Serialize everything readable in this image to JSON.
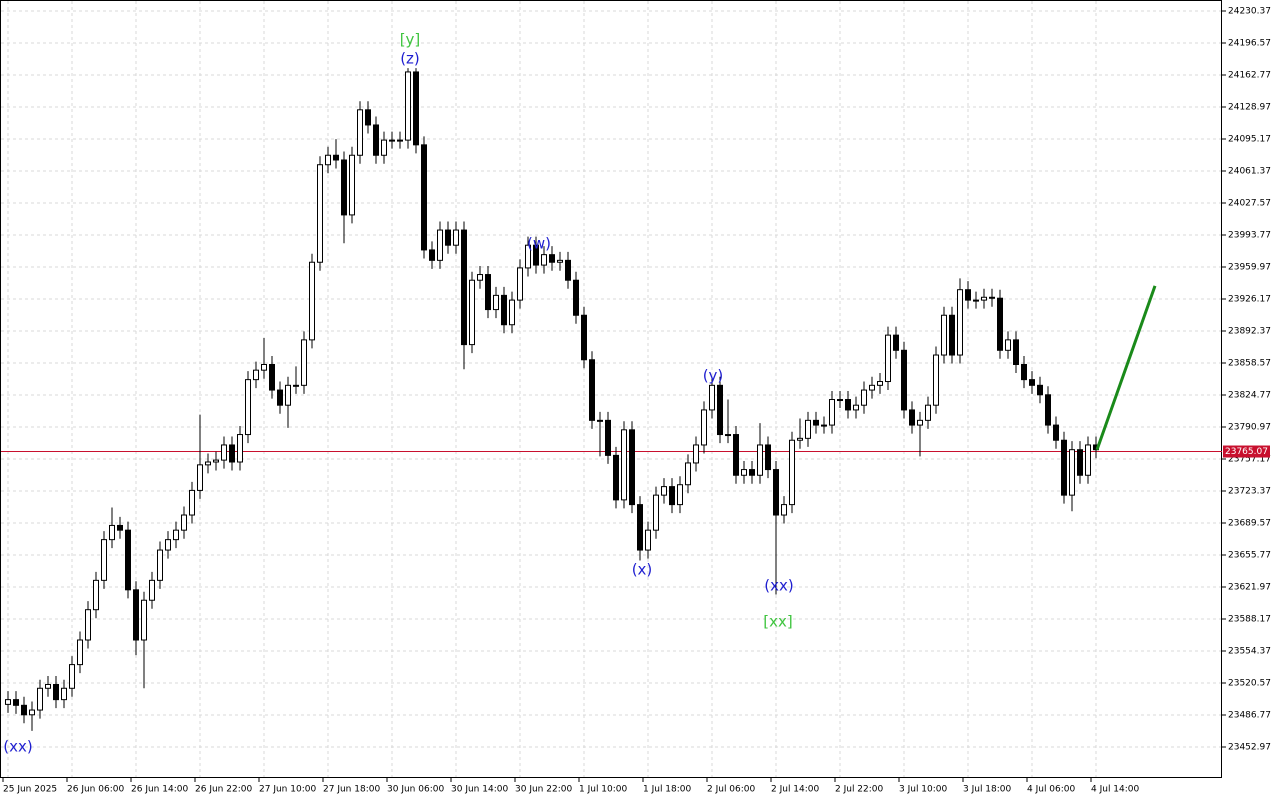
{
  "chart_data": {
    "type": "candlestick",
    "categories": [
      "25 Jun 2025",
      null,
      null,
      null,
      null,
      null,
      null,
      null,
      "26 Jun 06:00",
      null,
      null,
      null,
      null,
      null,
      null,
      null,
      "26 Jun 14:00",
      null,
      null,
      null,
      null,
      null,
      null,
      null,
      "26 Jun 22:00",
      null,
      null,
      null,
      null,
      null,
      null,
      null,
      "27 Jun 10:00",
      null,
      null,
      null,
      null,
      null,
      null,
      null,
      "27 Jun 18:00",
      null,
      null,
      null,
      null,
      null,
      null,
      null,
      "30 Jun 06:00",
      null,
      null,
      null,
      null,
      null,
      null,
      null,
      "30 Jun 14:00",
      null,
      null,
      null,
      null,
      null,
      null,
      null,
      "30 Jun 22:00",
      null,
      null,
      null,
      null,
      null,
      null,
      null,
      "1 Jul 10:00",
      null,
      null,
      null,
      null,
      null,
      null,
      null,
      "1 Jul 18:00",
      null,
      null,
      null,
      null,
      null,
      null,
      null,
      "2 Jul 06:00",
      null,
      null,
      null,
      null,
      null,
      null,
      null,
      "2 Jul 14:00",
      null,
      null,
      null,
      null,
      null,
      null,
      null,
      "2 Jul 22:00",
      null,
      null,
      null,
      null,
      null,
      null,
      null,
      "3 Jul 10:00",
      null,
      null,
      null,
      null,
      null,
      null,
      null,
      "3 Jul 18:00",
      null,
      null,
      null,
      null,
      null,
      null,
      null,
      "4 Jul 06:00",
      null,
      null,
      null,
      null,
      null,
      null,
      null,
      "4 Jul 14:00"
    ],
    "open": [
      23498,
      23503,
      23497,
      23487,
      23492,
      23515,
      23519,
      23503,
      23515,
      23540,
      23566,
      23598,
      23629,
      23672,
      23687,
      23682,
      23619,
      23566,
      23608,
      23629,
      23661,
      23672,
      23682,
      23698,
      23724,
      23751,
      23754,
      23756,
      23772,
      23754,
      23783,
      23841,
      23851,
      23857,
      23830,
      23814,
      23835,
      23835,
      23883,
      23965,
      24068,
      24078,
      24073,
      24015,
      24078,
      24126,
      24110,
      24078,
      24094,
      24094,
      24094,
      24166,
      24089,
      23978,
      23967,
      23999,
      23983,
      23999,
      23878,
      23946,
      23952,
      23915,
      23930,
      23899,
      23925,
      23959,
      23983,
      23962,
      23973,
      23965,
      23967,
      23946,
      23909,
      23862,
      23798,
      23798,
      23761,
      23714,
      23788,
      23709,
      23661,
      23682,
      23719,
      23728,
      23709,
      23730,
      23753,
      23772,
      23809,
      23835,
      23783,
      23783,
      23740,
      23746,
      23740,
      23772,
      23746,
      23698,
      23709,
      23777,
      23779,
      23798,
      23793,
      23793,
      23820,
      23820,
      23809,
      23814,
      23830,
      23835,
      23839,
      23888,
      23872,
      23809,
      23793,
      23798,
      23814,
      23867,
      23909,
      23867,
      23936,
      23925,
      23925,
      23928,
      23927,
      23872,
      23883,
      23857,
      23841,
      23835,
      23825,
      23793,
      23777,
      23719,
      23767,
      23740,
      23772
    ],
    "high": [
      23512,
      23512,
      23506,
      23501,
      23524,
      23528,
      23528,
      23524,
      23549,
      23575,
      23607,
      23638,
      23681,
      23706,
      23696,
      23691,
      23628,
      23617,
      23638,
      23670,
      23681,
      23691,
      23707,
      23733,
      23804,
      23763,
      23765,
      23781,
      23781,
      23792,
      23850,
      23860,
      23885,
      23866,
      23839,
      23844,
      23855,
      23892,
      23974,
      24077,
      24087,
      24095,
      24082,
      24087,
      24135,
      24135,
      24119,
      24103,
      24103,
      24103,
      24170,
      24170,
      24098,
      23987,
      24008,
      24008,
      24008,
      24008,
      23955,
      23961,
      23961,
      23939,
      23939,
      23934,
      23968,
      23992,
      23992,
      23982,
      23982,
      23976,
      23976,
      23955,
      23918,
      23871,
      23807,
      23807,
      23770,
      23797,
      23797,
      23718,
      23691,
      23728,
      23737,
      23737,
      23739,
      23762,
      23781,
      23818,
      23844,
      23844,
      23820,
      23792,
      23755,
      23755,
      23795,
      23781,
      23755,
      23718,
      23786,
      23800,
      23807,
      23807,
      23802,
      23829,
      23829,
      23829,
      23823,
      23839,
      23844,
      23848,
      23897,
      23897,
      23881,
      23818,
      23807,
      23823,
      23876,
      23918,
      23918,
      23948,
      23945,
      23934,
      23937,
      23937,
      23936,
      23892,
      23892,
      23866,
      23850,
      23844,
      23834,
      23802,
      23786,
      23776,
      23776,
      23781,
      23781
    ],
    "low": [
      23489,
      23488,
      23478,
      23470,
      23483,
      23506,
      23494,
      23494,
      23506,
      23531,
      23557,
      23589,
      23620,
      23663,
      23673,
      23610,
      23550,
      23515,
      23599,
      23620,
      23652,
      23663,
      23673,
      23689,
      23715,
      23742,
      23745,
      23747,
      23745,
      23745,
      23774,
      23832,
      23842,
      23821,
      23805,
      23790,
      23826,
      23826,
      23874,
      23956,
      24059,
      24064,
      23985,
      24006,
      24069,
      24101,
      24069,
      24069,
      24085,
      24085,
      24085,
      24080,
      23969,
      23958,
      23958,
      23974,
      23974,
      23852,
      23869,
      23937,
      23906,
      23906,
      23890,
      23890,
      23916,
      23950,
      23953,
      23953,
      23956,
      23956,
      23937,
      23900,
      23853,
      23789,
      23760,
      23752,
      23705,
      23705,
      23700,
      23650,
      23652,
      23673,
      23710,
      23700,
      23700,
      23721,
      23744,
      23763,
      23800,
      23774,
      23774,
      23731,
      23731,
      23731,
      23731,
      23737,
      23614,
      23689,
      23700,
      23768,
      23770,
      23784,
      23784,
      23784,
      23811,
      23800,
      23800,
      23805,
      23821,
      23826,
      23830,
      23863,
      23800,
      23784,
      23760,
      23789,
      23805,
      23858,
      23858,
      23858,
      23916,
      23916,
      23916,
      23918,
      23863,
      23863,
      23848,
      23832,
      23826,
      23816,
      23784,
      23768,
      23710,
      23702,
      23731,
      23731,
      23758
    ],
    "close": [
      23503,
      23497,
      23487,
      23492,
      23515,
      23519,
      23503,
      23515,
      23540,
      23566,
      23598,
      23629,
      23672,
      23687,
      23682,
      23619,
      23566,
      23608,
      23629,
      23661,
      23672,
      23682,
      23698,
      23724,
      23751,
      23754,
      23756,
      23772,
      23754,
      23783,
      23841,
      23851,
      23857,
      23830,
      23814,
      23835,
      23835,
      23883,
      23965,
      24068,
      24078,
      24073,
      24015,
      24078,
      24126,
      24110,
      24078,
      24094,
      24094,
      24094,
      24166,
      24089,
      23978,
      23967,
      23999,
      23983,
      23999,
      23878,
      23946,
      23952,
      23915,
      23930,
      23899,
      23925,
      23959,
      23983,
      23962,
      23973,
      23965,
      23967,
      23946,
      23909,
      23862,
      23798,
      23798,
      23761,
      23714,
      23788,
      23709,
      23661,
      23682,
      23719,
      23728,
      23709,
      23730,
      23753,
      23772,
      23809,
      23835,
      23783,
      23783,
      23740,
      23746,
      23740,
      23772,
      23746,
      23698,
      23709,
      23777,
      23779,
      23798,
      23793,
      23793,
      23820,
      23820,
      23809,
      23814,
      23830,
      23835,
      23839,
      23888,
      23872,
      23809,
      23793,
      23798,
      23814,
      23867,
      23909,
      23867,
      23936,
      23925,
      23925,
      23928,
      23927,
      23872,
      23883,
      23857,
      23841,
      23835,
      23825,
      23793,
      23777,
      23719,
      23767,
      23740,
      23772,
      23767
    ],
    "ylim": [
      23420.23,
      24241.99
    ],
    "yticks": [
      24230.37,
      24196.57,
      24162.77,
      24128.97,
      24095.17,
      24061.37,
      24027.57,
      23993.77,
      23959.97,
      23926.17,
      23892.37,
      23858.57,
      23824.77,
      23790.97,
      23757.17,
      23723.37,
      23689.57,
      23655.77,
      23621.97,
      23588.17,
      23554.37,
      23520.57,
      23486.77,
      23452.97
    ],
    "grid": true,
    "current_price": 23765.07,
    "current_price_color": "#c8102e",
    "forecast": {
      "color": "#1a8a1a",
      "values": [
        23767,
        23940
      ]
    },
    "annotations": [
      {
        "text": "(xx)",
        "color": "#1f1fd0"
      },
      {
        "text": "[y]",
        "color": "#3ec43e"
      },
      {
        "text": "(z)",
        "color": "#1f1fd0"
      },
      {
        "text": "(w)",
        "color": "#1f1fd0"
      },
      {
        "text": "(y)",
        "color": "#1f1fd0"
      },
      {
        "text": "(x)",
        "color": "#1f1fd0"
      },
      {
        "text": "(xx)",
        "color": "#1f1fd0"
      },
      {
        "text": "[xx]",
        "color": "#3ec43e"
      }
    ]
  }
}
